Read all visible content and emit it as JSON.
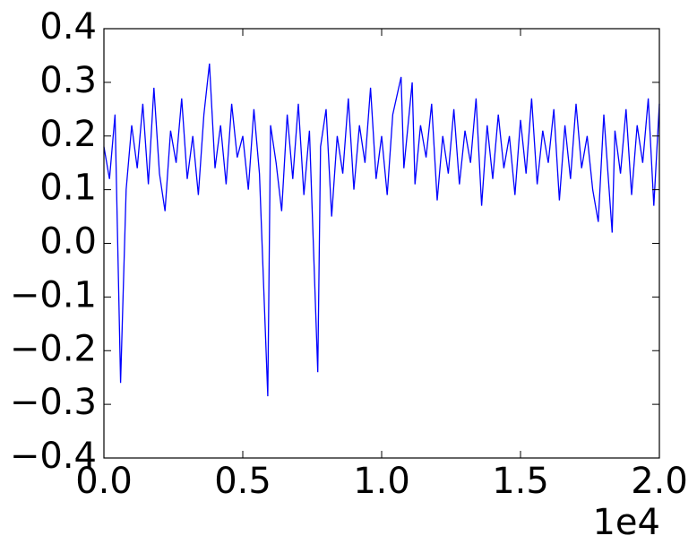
{
  "chart_data": {
    "type": "line",
    "x": [
      0,
      200,
      400,
      600,
      800,
      1000,
      1200,
      1400,
      1600,
      1800,
      2000,
      2200,
      2400,
      2600,
      2800,
      3000,
      3200,
      3400,
      3600,
      3800,
      4000,
      4200,
      4400,
      4600,
      4800,
      5000,
      5200,
      5400,
      5600,
      5900,
      6000,
      6200,
      6400,
      6600,
      6800,
      7000,
      7200,
      7400,
      7700,
      7800,
      8000,
      8200,
      8400,
      8600,
      8800,
      9000,
      9200,
      9400,
      9600,
      9800,
      10000,
      10200,
      10400,
      10700,
      10800,
      11100,
      11200,
      11400,
      11600,
      11800,
      12000,
      12200,
      12400,
      12600,
      12800,
      13000,
      13200,
      13400,
      13600,
      13800,
      14000,
      14200,
      14400,
      14600,
      14800,
      15000,
      15200,
      15400,
      15600,
      15800,
      16000,
      16200,
      16400,
      16600,
      16800,
      17000,
      17200,
      17400,
      17600,
      17800,
      18000,
      18300,
      18400,
      18600,
      18800,
      19000,
      19200,
      19400,
      19600,
      19800,
      20000
    ],
    "series": [
      {
        "color": "#0000ff",
        "values": [
          0.18,
          0.12,
          0.24,
          -0.26,
          0.1,
          0.22,
          0.14,
          0.26,
          0.11,
          0.29,
          0.13,
          0.06,
          0.21,
          0.15,
          0.27,
          0.12,
          0.2,
          0.09,
          0.24,
          0.335,
          0.14,
          0.22,
          0.11,
          0.26,
          0.16,
          0.2,
          0.1,
          0.25,
          0.13,
          -0.285,
          0.22,
          0.15,
          0.06,
          0.24,
          0.12,
          0.26,
          0.09,
          0.21,
          -0.24,
          0.18,
          0.25,
          0.05,
          0.2,
          0.13,
          0.27,
          0.1,
          0.22,
          0.15,
          0.29,
          0.12,
          0.2,
          0.09,
          0.24,
          0.31,
          0.14,
          0.3,
          0.11,
          0.22,
          0.16,
          0.26,
          0.08,
          0.2,
          0.13,
          0.25,
          0.11,
          0.21,
          0.15,
          0.27,
          0.07,
          0.22,
          0.12,
          0.24,
          0.14,
          0.2,
          0.09,
          0.23,
          0.13,
          0.27,
          0.11,
          0.21,
          0.15,
          0.25,
          0.08,
          0.22,
          0.12,
          0.26,
          0.14,
          0.2,
          0.1,
          0.04,
          0.24,
          0.02,
          0.21,
          0.13,
          0.25,
          0.09,
          0.22,
          0.15,
          0.27,
          0.07,
          0.26
        ]
      }
    ],
    "xlim": [
      0,
      20000
    ],
    "xticks": [
      {
        "value": 0,
        "label": "0.0"
      },
      {
        "value": 5000,
        "label": "0.5"
      },
      {
        "value": 10000,
        "label": "1.0"
      },
      {
        "value": 15000,
        "label": "1.5"
      },
      {
        "value": 20000,
        "label": "2.0"
      }
    ],
    "x_offset_label": "1e4",
    "ylim": [
      -0.4,
      0.4
    ],
    "yticks": [
      {
        "value": -0.4,
        "label": "−0.4"
      },
      {
        "value": -0.3,
        "label": "−0.3"
      },
      {
        "value": -0.2,
        "label": "−0.2"
      },
      {
        "value": -0.1,
        "label": "−0.1"
      },
      {
        "value": 0,
        "label": "0.0"
      },
      0.1,
      0.2,
      0.3,
      0.4
    ],
    "grid": false
  }
}
